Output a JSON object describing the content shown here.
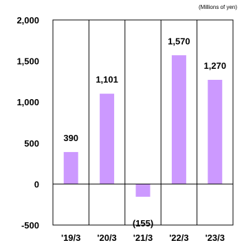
{
  "chart_data": {
    "type": "bar",
    "unit_label": "(Millions of yen)",
    "categories": [
      "'19/3",
      "'20/3",
      "'21/3",
      "'22/3",
      "'23/3"
    ],
    "values": [
      390,
      1101,
      -155,
      1570,
      1270
    ],
    "data_labels": [
      "390",
      "1,101",
      "(155)",
      "1,570",
      "1,270"
    ],
    "y_ticks": [
      2000,
      1500,
      1000,
      500,
      0,
      -500
    ],
    "y_tick_labels": [
      "2,000",
      "1,500",
      "1,000",
      "500",
      "0",
      "-500"
    ],
    "ylim": [
      -500,
      2000
    ],
    "bar_color": "#cc99ff",
    "grid": false
  }
}
